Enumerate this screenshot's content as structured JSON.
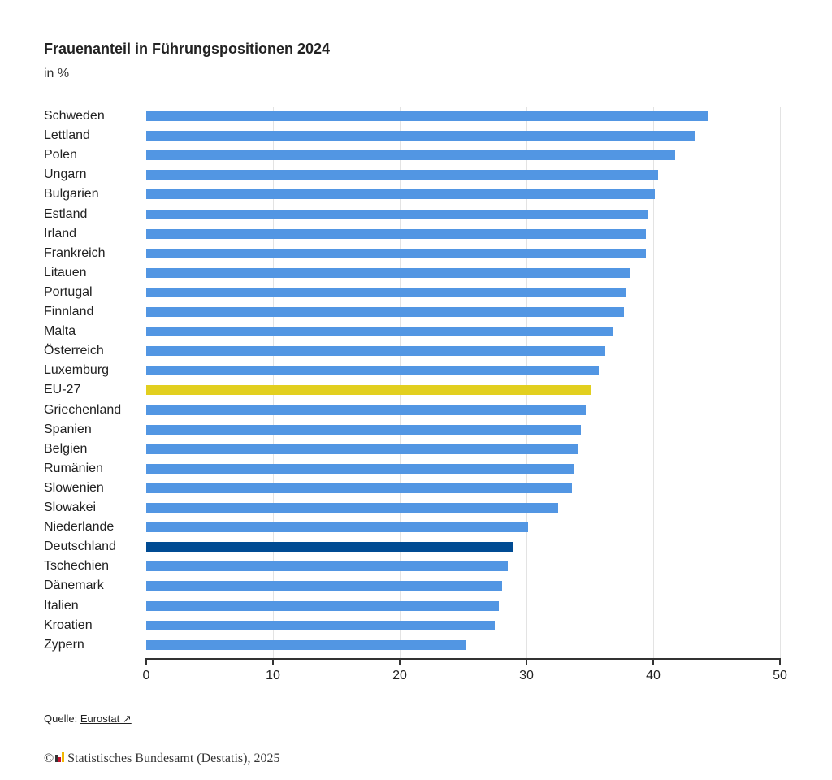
{
  "header": {
    "title": "Frauenanteil in Führungspositionen 2024",
    "subtitle": "in %"
  },
  "footer": {
    "source_prefix": "Quelle:",
    "source_link": "Eurostat ↗",
    "copyright_symbol": "©",
    "copyright_text": "Statistisches Bundesamt (Destatis), 2025"
  },
  "colors": {
    "default_bar": "#5296e3",
    "eu_bar": "#e2cf1f",
    "germany_bar": "#004b93",
    "grid": "#e3e3e3",
    "axis": "#333333"
  },
  "chart_data": {
    "type": "bar",
    "orientation": "horizontal",
    "title": "Frauenanteil in Führungspositionen 2024",
    "subtitle": "in %",
    "xlabel": "",
    "ylabel": "",
    "xlim": [
      0,
      50
    ],
    "xticks": [
      0,
      10,
      20,
      30,
      40,
      50
    ],
    "grid": true,
    "legend": null,
    "categories": [
      "Schweden",
      "Lettland",
      "Polen",
      "Ungarn",
      "Bulgarien",
      "Estland",
      "Irland",
      "Frankreich",
      "Litauen",
      "Portugal",
      "Finnland",
      "Malta",
      "Österreich",
      "Luxemburg",
      "EU-27",
      "Griechenland",
      "Spanien",
      "Belgien",
      "Rumänien",
      "Slowenien",
      "Slowakei",
      "Niederlande",
      "Deutschland",
      "Tschechien",
      "Dänemark",
      "Italien",
      "Kroatien",
      "Zypern"
    ],
    "values": [
      44.3,
      43.3,
      41.7,
      40.4,
      40.1,
      39.6,
      39.4,
      39.4,
      38.2,
      37.9,
      37.7,
      36.8,
      36.2,
      35.7,
      35.1,
      34.7,
      34.3,
      34.1,
      33.8,
      33.6,
      32.5,
      30.1,
      29.0,
      28.5,
      28.1,
      27.8,
      27.5,
      25.2
    ],
    "highlights": {
      "EU-27": "#e2cf1f",
      "Deutschland": "#004b93"
    }
  }
}
